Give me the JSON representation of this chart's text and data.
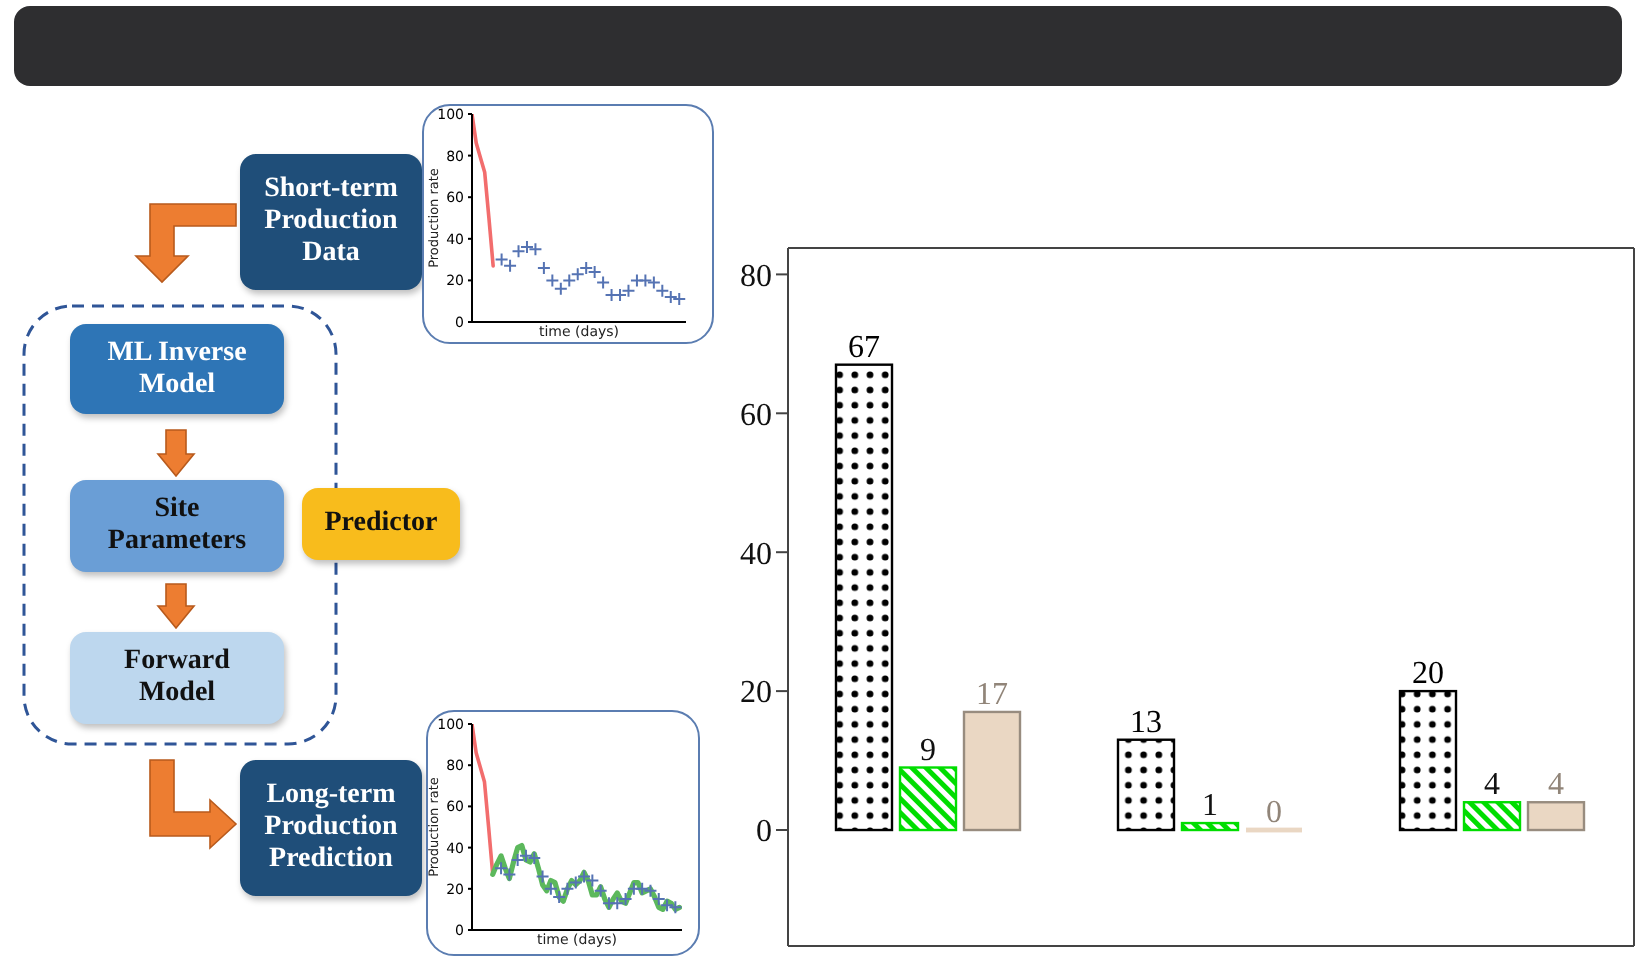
{
  "chart_data": [
    {
      "type": "other",
      "annotations": [
        "Short-term Production Data",
        "ML Inverse Model",
        "Site Parameters",
        "Forward Model",
        "Predictor",
        "Long-term Production Prediction"
      ]
    },
    {
      "type": "line",
      "xlabel": "time (days)",
      "ylabel": "Production rate",
      "categories": [
        null,
        null,
        null,
        null,
        null,
        null,
        null,
        null,
        null,
        null,
        null,
        null,
        null,
        null,
        null,
        null,
        null,
        null,
        null,
        null,
        null,
        null,
        null,
        null,
        null,
        null,
        null,
        null,
        null,
        null,
        null,
        null,
        null,
        null,
        null,
        null,
        null,
        null,
        null,
        null,
        null,
        null,
        null,
        null,
        null,
        null,
        null,
        null,
        null,
        null,
        null
      ],
      "ylim": [
        0,
        100
      ],
      "yticks": [
        0,
        20,
        40,
        60,
        80,
        100
      ],
      "tick_labels": "y",
      "series": [
        {
          "type": "line",
          "color": "#f26d6d",
          "values": [
            100,
            86,
            79,
            72,
            50,
            27,
            null,
            null,
            null,
            null,
            null,
            null,
            null,
            null,
            null,
            null,
            null,
            null,
            null,
            null,
            null,
            null,
            null,
            null,
            null,
            null,
            null,
            null,
            null,
            null,
            null,
            null,
            null,
            null,
            null,
            null,
            null,
            null,
            null,
            null,
            null,
            null,
            null,
            null,
            null,
            null,
            null,
            null,
            null,
            null,
            null
          ]
        },
        {
          "type": "scatter",
          "marker": "cross",
          "color": "#5573b3",
          "values": [
            null,
            null,
            null,
            null,
            null,
            null,
            null,
            30,
            null,
            27,
            null,
            34,
            null,
            36,
            null,
            35,
            null,
            26,
            null,
            20,
            null,
            16,
            null,
            20,
            null,
            23,
            null,
            26,
            null,
            24,
            null,
            19,
            null,
            13,
            null,
            13,
            null,
            15,
            null,
            20,
            null,
            20,
            null,
            19,
            null,
            15,
            null,
            12,
            null,
            11,
            null
          ]
        }
      ]
    },
    {
      "type": "line",
      "xlabel": "time (days)",
      "ylabel": "Production rate",
      "categories": [
        null,
        null,
        null,
        null,
        null,
        null,
        null,
        null,
        null,
        null,
        null,
        null,
        null,
        null,
        null,
        null,
        null,
        null,
        null,
        null,
        null,
        null,
        null,
        null,
        null,
        null,
        null,
        null,
        null,
        null,
        null,
        null,
        null,
        null,
        null,
        null,
        null,
        null,
        null,
        null,
        null,
        null,
        null,
        null,
        null,
        null,
        null,
        null,
        null,
        null,
        null
      ],
      "ylim": [
        0,
        100
      ],
      "yticks": [
        0,
        20,
        40,
        60,
        80,
        100
      ],
      "tick_labels": "y",
      "series": [
        {
          "type": "line",
          "color": "#f26d6d",
          "values": [
            100,
            86,
            79,
            72,
            50,
            27,
            null,
            null,
            null,
            null,
            null,
            null,
            null,
            null,
            null,
            null,
            null,
            null,
            null,
            null,
            null,
            null,
            null,
            null,
            null,
            null,
            null,
            null,
            null,
            null,
            null,
            null,
            null,
            null,
            null,
            null,
            null,
            null,
            null,
            null,
            null,
            null,
            null,
            null,
            null,
            null,
            null,
            null,
            null,
            null,
            null
          ]
        },
        {
          "type": "line",
          "color": "#5cb85c",
          "values": [
            null,
            null,
            null,
            null,
            null,
            27,
            32,
            36,
            30,
            25,
            33,
            40,
            41,
            34,
            33,
            37,
            30,
            22,
            19,
            24,
            23,
            16,
            14,
            20,
            24,
            22,
            24,
            28,
            24,
            17,
            17,
            21,
            15,
            11,
            15,
            18,
            14,
            13,
            18,
            23,
            23,
            18,
            19,
            20,
            16,
            11,
            10,
            14,
            13,
            10,
            11
          ]
        },
        {
          "type": "scatter",
          "marker": "cross",
          "color": "#5573b3",
          "values": [
            null,
            null,
            null,
            null,
            null,
            null,
            null,
            30,
            null,
            27,
            null,
            34,
            null,
            36,
            null,
            35,
            null,
            26,
            null,
            20,
            null,
            16,
            null,
            20,
            null,
            23,
            null,
            26,
            null,
            24,
            null,
            19,
            null,
            13,
            null,
            13,
            null,
            15,
            null,
            20,
            null,
            20,
            null,
            19,
            null,
            15,
            null,
            12,
            null,
            11,
            null
          ]
        }
      ]
    },
    {
      "type": "bar",
      "categories": [
        null,
        null,
        null
      ],
      "ylim": [
        -16.7,
        83.8
      ],
      "yticks": [
        0,
        20,
        40,
        60,
        80
      ],
      "tick_labels": "y",
      "data_labels": true,
      "series": [
        {
          "color": "#000000",
          "values": [
            67,
            13,
            20
          ]
        },
        {
          "color": "#00dd00",
          "values": [
            9,
            1,
            4
          ]
        },
        {
          "color": "#ead7c3",
          "values": [
            17,
            0,
            4
          ]
        }
      ]
    }
  ]
}
